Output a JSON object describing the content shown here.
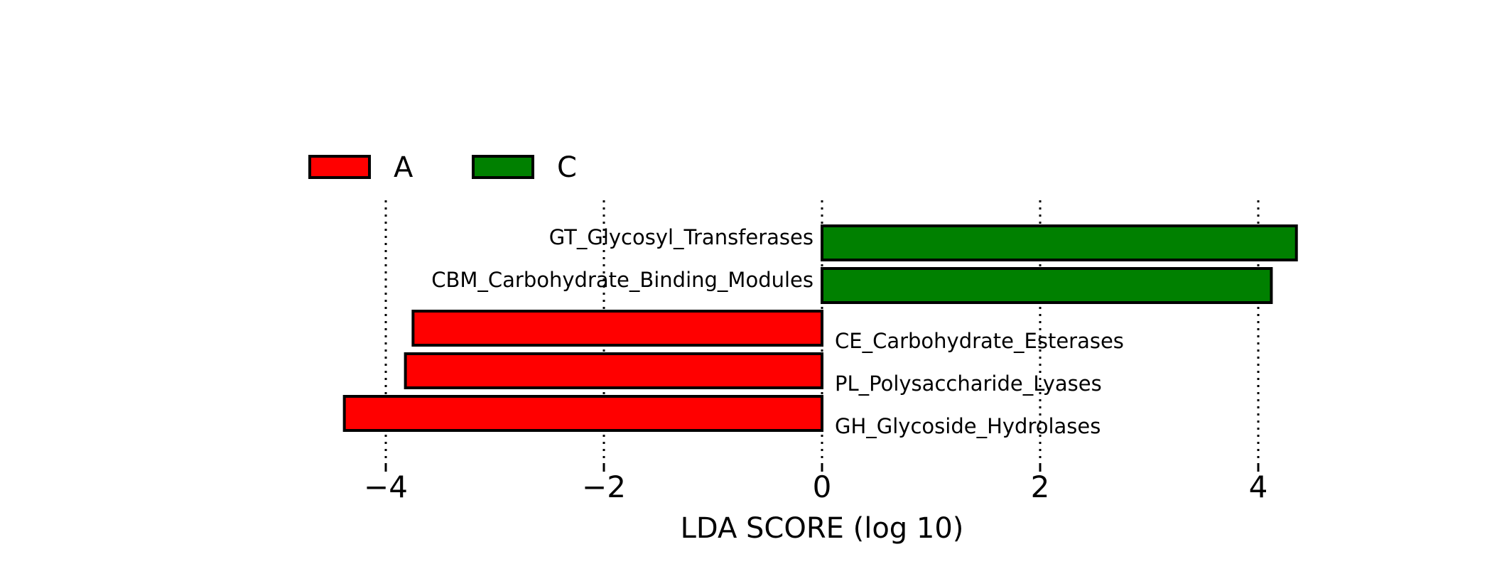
{
  "chart_data": {
    "type": "bar",
    "orientation": "horizontal",
    "xlabel": "LDA SCORE (log 10)",
    "xlim": [
      -4.8,
      4.8
    ],
    "xticks": [
      -4,
      -2,
      0,
      2,
      4
    ],
    "xtick_labels": [
      "−4",
      "−2",
      "0",
      "2",
      "4"
    ],
    "grid": "vertical dotted at ticks",
    "legend": {
      "placement": "top-left",
      "entries": [
        {
          "name": "A",
          "color": "#ff0000"
        },
        {
          "name": "C",
          "color": "#008000"
        }
      ]
    },
    "bars": [
      {
        "label": "GT_Glycosyl_Transferases",
        "value": 4.35,
        "group": "C"
      },
      {
        "label": "CBM_Carbohydrate_Binding_Modules",
        "value": 4.12,
        "group": "C"
      },
      {
        "label": "CE_Carbohydrate_Esterases",
        "value": -3.75,
        "group": "A"
      },
      {
        "label": "PL_Polysaccharide_Lyases",
        "value": -3.82,
        "group": "A"
      },
      {
        "label": "GH_Glycoside_Hydrolases",
        "value": -4.38,
        "group": "A"
      }
    ],
    "colors": {
      "A": "#ff0000",
      "C": "#008000"
    }
  }
}
